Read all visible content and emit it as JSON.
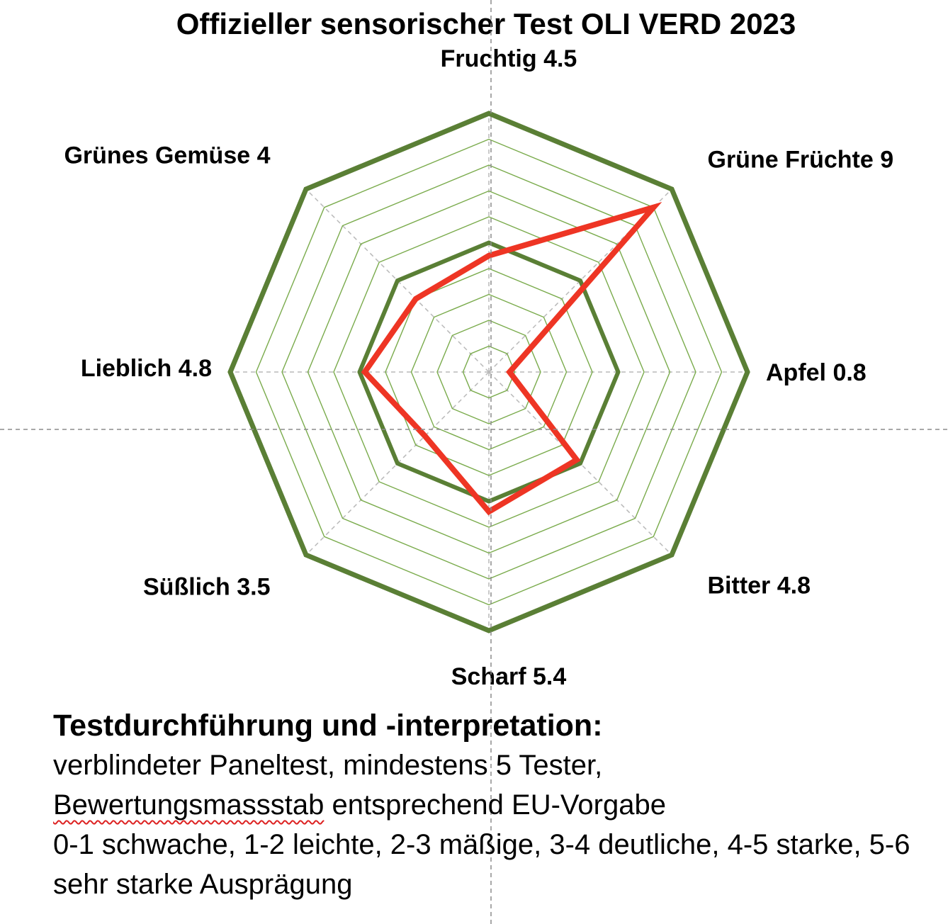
{
  "chart_data": {
    "type": "radar",
    "title": "Offizieller sensorischer Test OLI VERD 2023",
    "axes": [
      {
        "name": "Fruchtig",
        "value": 4.5,
        "label": "Fruchtig 4.5"
      },
      {
        "name": "Grüne Früchte",
        "value": 9,
        "label": "Grüne Früchte 9"
      },
      {
        "name": "Apfel",
        "value": 0.8,
        "label": "Apfel 0.8"
      },
      {
        "name": "Bitter",
        "value": 4.8,
        "label": "Bitter 4.8"
      },
      {
        "name": "Scharf",
        "value": 5.4,
        "label": "Scharf 5.4"
      },
      {
        "name": "Süßlich",
        "value": 3.5,
        "label": "Süßlich 3.5"
      },
      {
        "name": "Lieblich",
        "value": 4.8,
        "label": "Lieblich 4.8"
      },
      {
        "name": "Grünes Gemüse",
        "value": 4,
        "label": "Grünes Gemüse 4"
      }
    ],
    "range": [
      0,
      10
    ],
    "gridlines_every": 1,
    "highlighted_rings": [
      5,
      10
    ],
    "colors": {
      "series": "#ee3524",
      "grid_major": "#5a7f35",
      "grid_minor": "#7aab4c"
    }
  },
  "notes": {
    "heading": "Testdurchführung und -interpretation:",
    "line1": "verblindeter Paneltest, mindestens 5 Tester,",
    "line2_word": "Bewertungsmassstab",
    "line2_rest": " entsprechend EU-Vorgabe",
    "line3": "0-1 schwache, 1-2 leichte, 2-3 mäßige, 3-4  deutliche, 4-5 starke, 5-6 sehr starke Ausprägung"
  }
}
